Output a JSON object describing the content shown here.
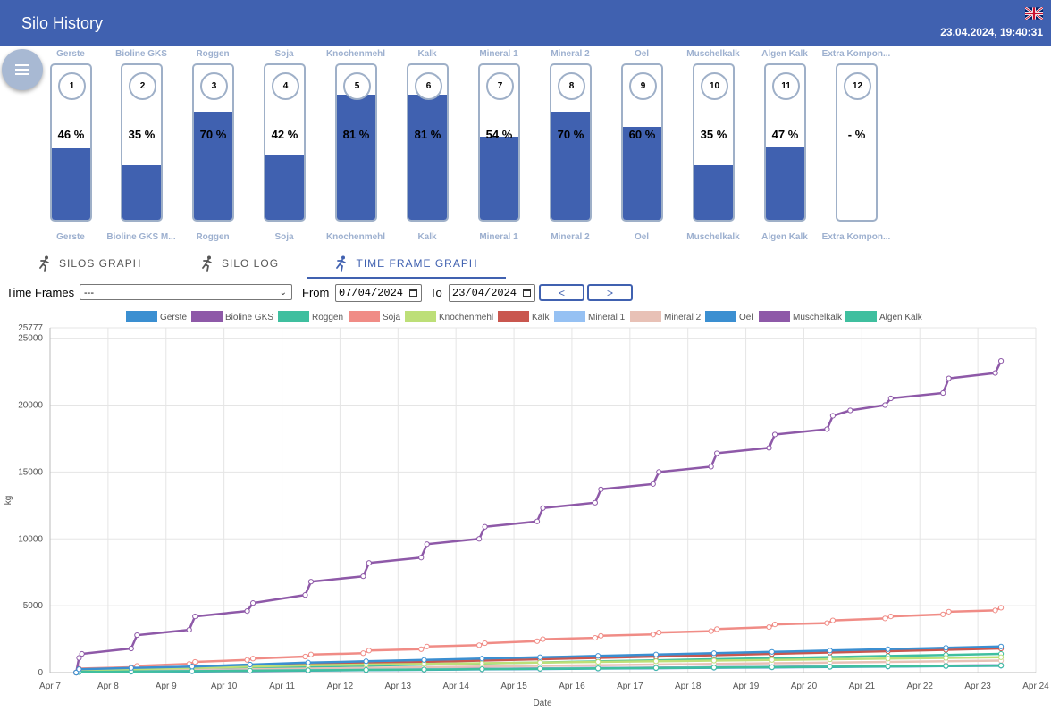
{
  "header": {
    "title": "Silo History",
    "datetime": "23.04.2024, 19:40:31",
    "flag_icon": "uk-flag-icon"
  },
  "silos": [
    {
      "number": "1",
      "top_label": "Gerste",
      "bottom_label": "Gerste",
      "percent_label": "46 %",
      "level": 46
    },
    {
      "number": "2",
      "top_label": "Bioline GKS",
      "bottom_label": "Bioline GKS M...",
      "percent_label": "35 %",
      "level": 35
    },
    {
      "number": "3",
      "top_label": "Roggen",
      "bottom_label": "Roggen",
      "percent_label": "70 %",
      "level": 70
    },
    {
      "number": "4",
      "top_label": "Soja",
      "bottom_label": "Soja",
      "percent_label": "42 %",
      "level": 42
    },
    {
      "number": "5",
      "top_label": "Knochenmehl",
      "bottom_label": "Knochenmehl",
      "percent_label": "81 %",
      "level": 81
    },
    {
      "number": "6",
      "top_label": "Kalk",
      "bottom_label": "Kalk",
      "percent_label": "81 %",
      "level": 81
    },
    {
      "number": "7",
      "top_label": "Mineral 1",
      "bottom_label": "Mineral 1",
      "percent_label": "54 %",
      "level": 54
    },
    {
      "number": "8",
      "top_label": "Mineral 2",
      "bottom_label": "Mineral 2",
      "percent_label": "70 %",
      "level": 70
    },
    {
      "number": "9",
      "top_label": "Oel",
      "bottom_label": "Oel",
      "percent_label": "60 %",
      "level": 60
    },
    {
      "number": "10",
      "top_label": "Muschelkalk",
      "bottom_label": "Muschelkalk",
      "percent_label": "35 %",
      "level": 35
    },
    {
      "number": "11",
      "top_label": "Algen Kalk",
      "bottom_label": "Algen Kalk",
      "percent_label": "47 %",
      "level": 47
    },
    {
      "number": "12",
      "top_label": "Extra Kompon...",
      "bottom_label": "Extra Kompon...",
      "percent_label": "- %",
      "level": 0
    }
  ],
  "tabs": [
    {
      "label": "SILOS GRAPH",
      "icon": "running-person-icon",
      "active": false
    },
    {
      "label": "SILO LOG",
      "icon": "running-person-icon",
      "active": false
    },
    {
      "label": "TIME FRAME GRAPH",
      "icon": "running-person-icon",
      "active": true
    }
  ],
  "controls": {
    "time_frames_label": "Time Frames",
    "time_frames_value": "---",
    "from_label": "From",
    "from_value": "07/04/2024",
    "to_label": "To",
    "to_value": "23/04/2024",
    "prev_label": "<",
    "next_label": ">"
  },
  "chart_data": {
    "type": "line",
    "xlabel": "Date",
    "ylabel": "kg",
    "ylim": [
      0,
      25777
    ],
    "yticks": [
      "0",
      "5000",
      "10000",
      "15000",
      "20000",
      "25000",
      "25777"
    ],
    "xticks": [
      "Apr 7",
      "Apr 8",
      "Apr 9",
      "Apr 10",
      "Apr 11",
      "Apr 12",
      "Apr 13",
      "Apr 14",
      "Apr 15",
      "Apr 16",
      "Apr 17",
      "Apr 18",
      "Apr 19",
      "Apr 20",
      "Apr 21",
      "Apr 22",
      "Apr 23",
      "Apr 24"
    ],
    "xlim": [
      7,
      24
    ],
    "grid": true,
    "legend_position": "top",
    "series": [
      {
        "name": "Gerste",
        "color": "#3b8fd1",
        "x": [
          7.45,
          7.5,
          8.4,
          9.45,
          10.45,
          11.45,
          12.45,
          13.45,
          14.45,
          15.45,
          16.45,
          17.45,
          18.45,
          19.45,
          20.45,
          21.45,
          22.45,
          23.4
        ],
        "values": [
          0,
          250,
          350,
          450,
          600,
          750,
          850,
          950,
          1050,
          1150,
          1250,
          1350,
          1450,
          1550,
          1650,
          1750,
          1850,
          1950
        ]
      },
      {
        "name": "Bioline GKS",
        "color": "#8e59a8",
        "x": [
          7.45,
          7.5,
          7.55,
          8.4,
          8.5,
          9.4,
          9.5,
          10.4,
          10.5,
          11.4,
          11.5,
          12.4,
          12.5,
          13.4,
          13.5,
          14.4,
          14.5,
          15.4,
          15.5,
          16.4,
          16.5,
          17.4,
          17.5,
          18.4,
          18.5,
          19.4,
          19.5,
          20.4,
          20.5,
          20.8,
          21.4,
          21.5,
          22.4,
          22.5,
          23.3,
          23.4
        ],
        "values": [
          0,
          1100,
          1400,
          1800,
          2800,
          3200,
          4200,
          4600,
          5200,
          5800,
          6800,
          7200,
          8200,
          8600,
          9600,
          10000,
          10900,
          11300,
          12300,
          12700,
          13700,
          14100,
          15000,
          15400,
          16400,
          16800,
          17800,
          18200,
          19200,
          19600,
          20000,
          20500,
          20900,
          22000,
          22400,
          23300
        ]
      },
      {
        "name": "Roggen",
        "color": "#3fbf9f",
        "x": [
          7.45,
          7.5,
          8.4,
          9.45,
          10.45,
          11.45,
          12.45,
          13.45,
          14.45,
          15.45,
          16.45,
          17.45,
          18.45,
          19.45,
          20.45,
          21.45,
          22.45,
          23.4
        ],
        "values": [
          0,
          50,
          80,
          110,
          140,
          170,
          200,
          230,
          260,
          290,
          320,
          350,
          380,
          410,
          440,
          470,
          500,
          530
        ]
      },
      {
        "name": "Soja",
        "color": "#f08c86",
        "x": [
          7.45,
          7.5,
          8.4,
          8.5,
          9.4,
          9.5,
          10.4,
          10.5,
          11.4,
          11.5,
          12.4,
          12.5,
          13.4,
          13.5,
          14.4,
          14.5,
          15.4,
          15.5,
          16.4,
          16.5,
          17.4,
          17.5,
          18.4,
          18.5,
          19.4,
          19.5,
          20.4,
          20.5,
          21.4,
          21.5,
          22.4,
          22.5,
          23.3,
          23.4
        ],
        "values": [
          0,
          300,
          400,
          500,
          650,
          800,
          950,
          1050,
          1200,
          1350,
          1450,
          1650,
          1750,
          1950,
          2050,
          2200,
          2350,
          2500,
          2600,
          2750,
          2850,
          3000,
          3100,
          3250,
          3400,
          3600,
          3700,
          3900,
          4050,
          4200,
          4350,
          4550,
          4650,
          4850
        ]
      },
      {
        "name": "Knochenmehl",
        "color": "#bddf78",
        "x": [
          7.45,
          7.5,
          8.4,
          9.45,
          10.45,
          11.45,
          12.45,
          13.45,
          14.45,
          15.45,
          16.45,
          17.45,
          18.45,
          19.45,
          20.45,
          21.45,
          22.45,
          23.4
        ],
        "values": [
          0,
          150,
          250,
          350,
          450,
          550,
          600,
          650,
          700,
          750,
          800,
          850,
          900,
          950,
          1000,
          1050,
          1100,
          1150
        ]
      },
      {
        "name": "Kalk",
        "color": "#c9574f",
        "x": [
          7.45,
          7.5,
          8.4,
          9.45,
          10.45,
          11.45,
          12.45,
          13.45,
          14.45,
          15.45,
          16.45,
          17.45,
          18.45,
          19.45,
          20.45,
          21.45,
          22.45,
          23.4
        ],
        "values": [
          0,
          200,
          300,
          400,
          500,
          600,
          700,
          800,
          900,
          1000,
          1100,
          1200,
          1300,
          1400,
          1500,
          1600,
          1700,
          1800
        ]
      },
      {
        "name": "Mineral 1",
        "color": "#96c1f3",
        "x": [
          7.45,
          7.5,
          8.4,
          9.45,
          10.45,
          11.45,
          12.45,
          13.45,
          14.45,
          15.45,
          16.45,
          17.45,
          18.45,
          19.45,
          20.45,
          21.45,
          22.45,
          23.4
        ],
        "values": [
          0,
          60,
          90,
          120,
          150,
          180,
          210,
          240,
          270,
          300,
          330,
          360,
          390,
          420,
          450,
          480,
          510,
          540
        ]
      },
      {
        "name": "Mineral 2",
        "color": "#e8c1b6",
        "x": [
          7.45,
          7.5,
          8.4,
          9.45,
          10.45,
          11.45,
          12.45,
          13.45,
          14.45,
          15.45,
          16.45,
          17.45,
          18.45,
          19.45,
          20.45,
          21.45,
          22.45,
          23.4
        ],
        "values": [
          0,
          100,
          150,
          200,
          250,
          300,
          350,
          400,
          450,
          500,
          550,
          600,
          650,
          700,
          750,
          800,
          850,
          900
        ]
      },
      {
        "name": "Oel",
        "color": "#3b8fd1",
        "x": [
          7.45,
          7.5,
          8.4,
          9.45,
          10.45,
          11.45,
          12.45,
          13.45,
          14.45,
          15.45,
          16.45,
          17.45,
          18.45,
          19.45,
          20.45,
          21.45,
          22.45,
          23.4
        ],
        "values": [
          0,
          30,
          60,
          90,
          120,
          150,
          180,
          210,
          240,
          270,
          300,
          330,
          360,
          390,
          420,
          450,
          480,
          510
        ]
      },
      {
        "name": "Muschelkalk",
        "color": "#8e59a8",
        "x": [
          7.45,
          7.5,
          8.4,
          9.45,
          10.45,
          11.45,
          12.45,
          13.45,
          14.45,
          15.45,
          16.45,
          17.45,
          18.45,
          19.45,
          20.45,
          21.45,
          22.45,
          23.4
        ],
        "values": [
          0,
          70,
          100,
          130,
          160,
          190,
          220,
          250,
          280,
          310,
          340,
          370,
          400,
          430,
          460,
          490,
          520,
          550
        ]
      },
      {
        "name": "Algen Kalk",
        "color": "#3fbf9f",
        "x": [
          7.45,
          7.5,
          8.4,
          9.45,
          10.45,
          11.45,
          12.45,
          13.45,
          14.45,
          15.45,
          16.45,
          17.45,
          18.45,
          19.45,
          20.45,
          21.45,
          22.45,
          23.4
        ],
        "values": [
          0,
          130,
          200,
          280,
          360,
          440,
          520,
          600,
          680,
          760,
          840,
          920,
          1000,
          1080,
          1160,
          1240,
          1320,
          1400
        ]
      }
    ]
  }
}
